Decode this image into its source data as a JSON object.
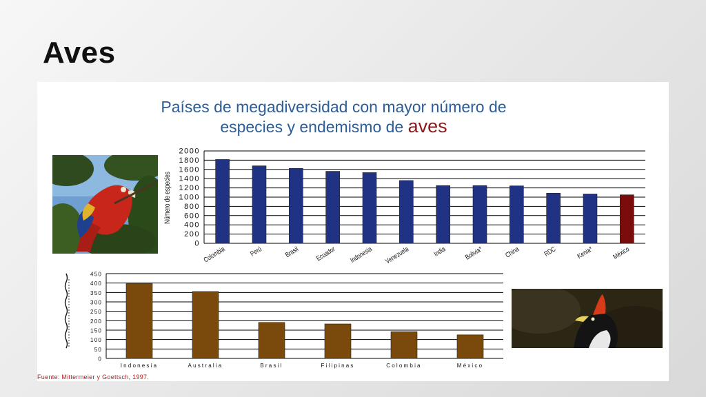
{
  "slide": {
    "title": "Aves"
  },
  "panel": {
    "title_line1": "Países de megadiversidad con mayor número de",
    "title_line2_prefix": "especies y endemismo de ",
    "title_line2_highlight": "aves",
    "source": "Fuente: Mittermeier y Goettsch, 1997."
  },
  "icons": {
    "photo_left": "scarlet-macaw-photo",
    "photo_right": "horned-guan-photo"
  },
  "colors": {
    "bar_blue": "#1f3284",
    "bar_red": "#7a0c0c",
    "bar_brown": "#7a4a0c",
    "title_blue": "#2c5d98",
    "title_highlight": "#8b1a1a"
  },
  "chart_data": [
    {
      "type": "bar",
      "title": "",
      "xlabel": "",
      "ylabel": "Número de especies",
      "ylim": [
        0,
        2000
      ],
      "yticks": [
        0,
        200,
        400,
        600,
        800,
        1000,
        1200,
        1400,
        1600,
        1800,
        2000
      ],
      "grid": true,
      "categories": [
        "Colombia",
        "Perú",
        "Brasil",
        "Ecuador",
        "Indonesia",
        "Venezuela",
        "India",
        "Bolivia*",
        "China",
        "RDC",
        "Kenia*",
        "México"
      ],
      "values": [
        1815,
        1678,
        1622,
        1559,
        1531,
        1360,
        1250,
        1250,
        1244,
        1086,
        1068,
        1050
      ],
      "highlight_category": "México"
    },
    {
      "type": "bar",
      "title": "",
      "xlabel": "",
      "ylabel": "",
      "ylim": [
        0,
        450
      ],
      "yticks": [
        0,
        50,
        100,
        150,
        200,
        250,
        300,
        350,
        400,
        450
      ],
      "grid": true,
      "categories": [
        "Indonesia",
        "Australia",
        "Brasil",
        "Filipinas",
        "Colombia",
        "México"
      ],
      "values": [
        397,
        355,
        191,
        183,
        142,
        125
      ]
    }
  ]
}
